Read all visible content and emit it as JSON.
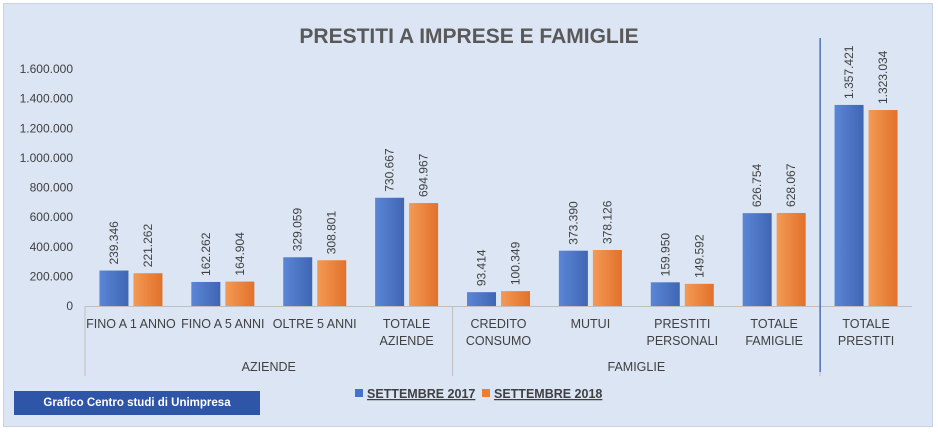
{
  "chart_data": {
    "type": "bar",
    "title": "PRESTITI A IMPRESE E FAMIGLIE",
    "categories": [
      "FINO A 1 ANNO",
      "FINO A 5 ANNI",
      "OLTRE 5 ANNI",
      "TOTALE AZIENDE",
      "CREDITO CONSUMO",
      "MUTUI",
      "PRESTITI PERSONALI",
      "TOTALE FAMIGLIE",
      "TOTALE PRESTITI"
    ],
    "category_lines": [
      [
        "FINO A 1 ANNO"
      ],
      [
        "FINO A 5 ANNI"
      ],
      [
        "OLTRE 5 ANNI"
      ],
      [
        "TOTALE",
        "AZIENDE"
      ],
      [
        "CREDITO",
        "CONSUMO"
      ],
      [
        "MUTUI"
      ],
      [
        "PRESTITI",
        "PERSONALI"
      ],
      [
        "TOTALE",
        "FAMIGLIE"
      ],
      [
        "TOTALE",
        "PRESTITI"
      ]
    ],
    "groups": [
      {
        "label": "AZIENDE",
        "start": 0,
        "end": 3
      },
      {
        "label": "FAMIGLIE",
        "start": 4,
        "end": 7
      }
    ],
    "series": [
      {
        "name": "SETTEMBRE 2017",
        "color": "#4472c4",
        "values": [
          239346,
          162262,
          329059,
          730667,
          93414,
          373390,
          159950,
          626754,
          1357421
        ],
        "labels": [
          "239.346",
          "162.262",
          "329.059",
          "730.667",
          "93.414",
          "373.390",
          "159.950",
          "626.754",
          "1.357.421"
        ]
      },
      {
        "name": "SETTEMBRE 2018",
        "color": "#ed7d31",
        "values": [
          221262,
          164904,
          308801,
          694967,
          100349,
          378126,
          149592,
          628067,
          1323034
        ],
        "labels": [
          "221.262",
          "164.904",
          "308.801",
          "694.967",
          "100.349",
          "378.126",
          "149.592",
          "628.067",
          "1.323.034"
        ]
      }
    ],
    "ylim": [
      0,
      1600000
    ],
    "yticks": [
      0,
      200000,
      400000,
      600000,
      800000,
      1000000,
      1200000,
      1400000,
      1600000
    ],
    "ytick_labels": [
      "0",
      "200.000",
      "400.000",
      "600.000",
      "800.000",
      "1.000.000",
      "1.200.000",
      "1.400.000",
      "1.600.000"
    ],
    "grid": false,
    "legend_position": "bottom-center"
  },
  "footer": {
    "credit": "Grafico Centro studi di Unimpresa"
  }
}
